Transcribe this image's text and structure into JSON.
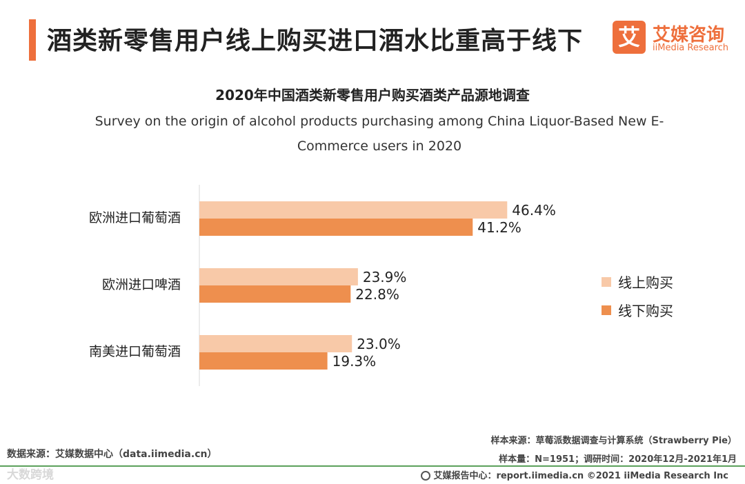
{
  "header": {
    "title": "酒类新零售用户线上购买进口酒水比重高于线下",
    "logo_mark": "艾",
    "logo_cn": "艾媒咨询",
    "logo_en": "iiMedia Research"
  },
  "colors": {
    "accent": "#ee6f3c",
    "online": "#f8c9a8",
    "offline": "#ee8f4e"
  },
  "chart_data": {
    "type": "bar",
    "orientation": "horizontal",
    "title": "2020年中国酒类新零售用户购买酒类产品源地调查",
    "subtitle": "Survey on the origin of alcohol products purchasing among China Liquor-Based New E-Commerce users in 2020",
    "categories": [
      "欧洲进口葡萄酒",
      "欧洲进口啤酒",
      "南美进口葡萄酒"
    ],
    "series": [
      {
        "name": "线上购买",
        "values": [
          46.4,
          23.9,
          23.0
        ],
        "labels": [
          "46.4%",
          "23.9%",
          "23.0%"
        ],
        "color": "#f8c9a8"
      },
      {
        "name": "线下购买",
        "values": [
          41.2,
          22.8,
          19.3
        ],
        "labels": [
          "41.2%",
          "22.8%",
          "19.3%"
        ],
        "color": "#ee8f4e"
      }
    ],
    "xlim": [
      0,
      55
    ],
    "unit": "%",
    "legend_position": "right"
  },
  "footer": {
    "source_left": "数据来源：艾媒数据中心（data.iimedia.cn）",
    "sample_source": "样本来源：草莓派数据调查与计算系统（Strawberry Pie）",
    "sample_size": "样本量：N=1951；调研时间：2020年12月-2021年1月",
    "report_center": "艾媒报告中心：report.iimedia.cn  ©2021  iiMedia Research  Inc",
    "watermark": "大数跨境"
  }
}
